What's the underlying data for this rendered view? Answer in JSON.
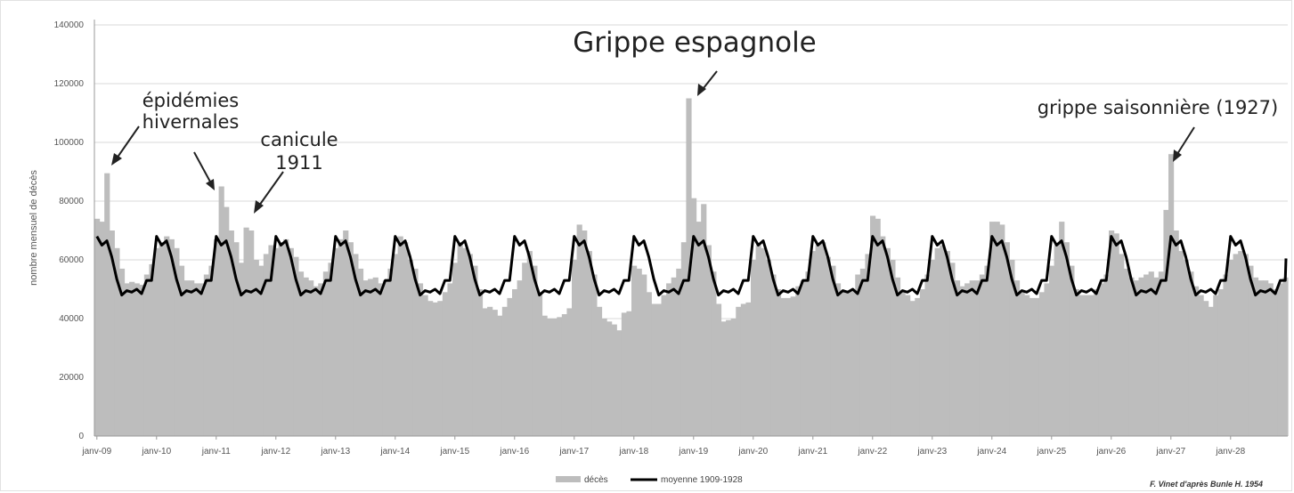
{
  "chart_data": {
    "type": "bar",
    "title": "",
    "xlabel": "",
    "ylabel": "nombre mensuel de décès",
    "ylim": [
      0,
      140000
    ],
    "yticks": [
      0,
      20000,
      40000,
      60000,
      80000,
      100000,
      120000,
      140000
    ],
    "x_tick_labels": [
      "janv-09",
      "janv-10",
      "janv-11",
      "janv-12",
      "janv-13",
      "janv-14",
      "janv-15",
      "janv-16",
      "janv-17",
      "janv-18",
      "janv-19",
      "janv-20",
      "janv-21",
      "janv-22",
      "janv-23",
      "janv-24",
      "janv-25",
      "janv-26",
      "janv-27",
      "janv-28"
    ],
    "grid": true,
    "legend_position": "bottom",
    "start_year": 1909,
    "series": [
      {
        "name": "décès",
        "type": "bar",
        "color": "#bdbdbd",
        "values": [
          74000,
          73000,
          89500,
          70000,
          64000,
          57000,
          52000,
          52500,
          52000,
          51500,
          55000,
          58500,
          64000,
          66000,
          68000,
          67000,
          64000,
          58000,
          53000,
          53000,
          52000,
          52000,
          55000,
          58000,
          67000,
          85000,
          78000,
          70000,
          66000,
          59000,
          71000,
          70000,
          60000,
          58000,
          62000,
          65000,
          64000,
          66000,
          67000,
          64000,
          61000,
          56000,
          54000,
          53000,
          51000,
          52000,
          56000,
          59000,
          64000,
          67000,
          70000,
          66000,
          62000,
          57000,
          53000,
          53500,
          54000,
          52000,
          53000,
          57000,
          62000,
          68000,
          66000,
          60000,
          57000,
          52000,
          48000,
          46000,
          45500,
          46000,
          49000,
          52000,
          59000,
          66000,
          64000,
          62000,
          58000,
          50000,
          43500,
          44000,
          43000,
          41000,
          44000,
          47000,
          50000,
          53000,
          59000,
          63000,
          58000,
          49000,
          41000,
          40000,
          40000,
          40500,
          41500,
          43500,
          60000,
          72000,
          70000,
          63000,
          55000,
          44000,
          40000,
          39000,
          38000,
          36000,
          42000,
          42500,
          58000,
          57000,
          55000,
          49000,
          45000,
          45000,
          48000,
          52000,
          54000,
          57000,
          66000,
          115000,
          81000,
          73000,
          79000,
          65000,
          56000,
          45000,
          39000,
          39500,
          40000,
          44000,
          45000,
          45500,
          60000,
          65000,
          64000,
          60000,
          55000,
          50000,
          47000,
          47000,
          47500,
          51000,
          53000,
          56000,
          63000,
          65000,
          66000,
          61000,
          58000,
          52000,
          49000,
          49500,
          50000,
          55000,
          57000,
          62000,
          75000,
          74000,
          68000,
          64000,
          60000,
          54000,
          49000,
          48000,
          46000,
          47000,
          50000,
          55000,
          60000,
          64000,
          65000,
          63000,
          59000,
          53000,
          51000,
          52000,
          53000,
          53000,
          55000,
          58000,
          73000,
          73000,
          72000,
          66000,
          60000,
          53000,
          49000,
          48000,
          47000,
          47000,
          49000,
          52000,
          58000,
          65000,
          73000,
          66000,
          58000,
          50000,
          48000,
          48000,
          48000,
          50000,
          52000,
          55000,
          70000,
          69000,
          62000,
          57000,
          54000,
          53000,
          54000,
          55000,
          56000,
          54000,
          56000,
          77000,
          96000,
          70000,
          63000,
          60000,
          56000,
          51000,
          48000,
          46000,
          44000,
          48000,
          50000,
          55000,
          60000,
          62000,
          63000,
          62000,
          58000,
          54000,
          53000,
          53000,
          52000,
          50000,
          52000,
          54000
        ]
      },
      {
        "name": "moyenne 1909-1928",
        "type": "line",
        "color": "#000000",
        "values": [
          68000,
          65000,
          66500,
          61000,
          53500,
          48000,
          49500,
          49000,
          50000,
          48500,
          53000,
          53000
        ]
      }
    ]
  },
  "annotations": [
    {
      "lines": [
        "épidémies",
        "hivernales"
      ]
    },
    {
      "lines": [
        "canicule",
        "1911"
      ]
    },
    {
      "lines": [
        "Grippe espagnole"
      ]
    },
    {
      "lines": [
        "grippe saisonnière (1927)"
      ]
    }
  ],
  "source_note": "F. Vinet d'après Bunle H. 1954"
}
